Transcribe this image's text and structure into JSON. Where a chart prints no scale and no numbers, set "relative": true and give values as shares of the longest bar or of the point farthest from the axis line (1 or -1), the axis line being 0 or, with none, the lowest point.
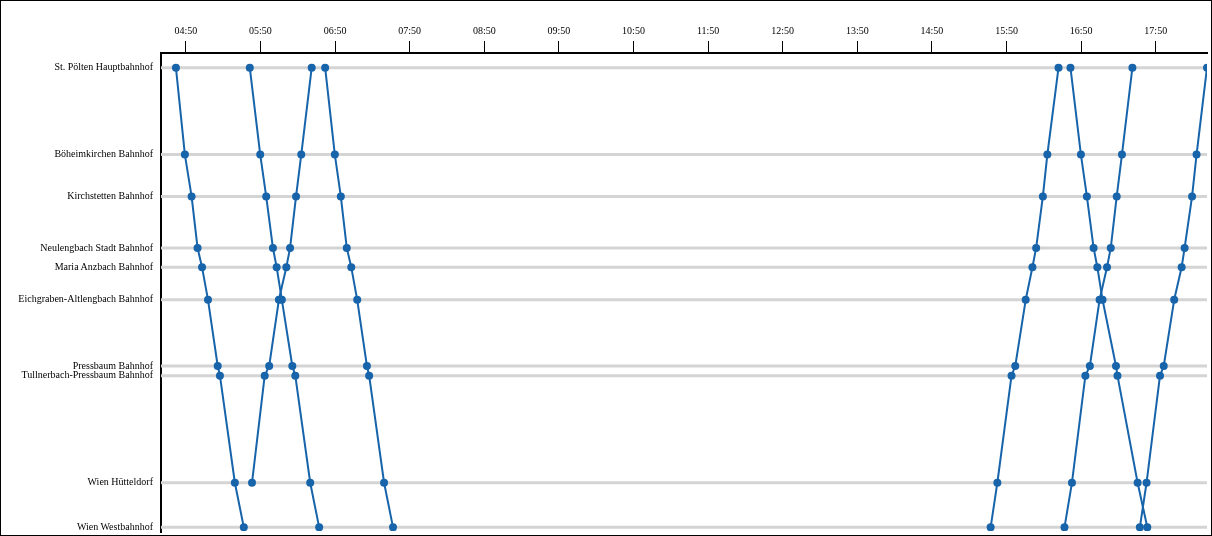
{
  "chart_data": {
    "type": "line",
    "relative": true,
    "marker": "circle",
    "line_style": "solid",
    "legend": false,
    "xlim": [
      4.5,
      18.52
    ],
    "xticks": [
      {
        "value": 4.833,
        "label": "04:50"
      },
      {
        "value": 5.833,
        "label": "05:50"
      },
      {
        "value": 6.833,
        "label": "06:50"
      },
      {
        "value": 7.833,
        "label": "07:50"
      },
      {
        "value": 8.833,
        "label": "08:50"
      },
      {
        "value": 9.833,
        "label": "09:50"
      },
      {
        "value": 10.833,
        "label": "10:50"
      },
      {
        "value": 11.833,
        "label": "11:50"
      },
      {
        "value": 12.833,
        "label": "12:50"
      },
      {
        "value": 13.833,
        "label": "13:50"
      },
      {
        "value": 14.833,
        "label": "14:50"
      },
      {
        "value": 15.833,
        "label": "15:50"
      },
      {
        "value": 16.833,
        "label": "16:50"
      },
      {
        "value": 17.833,
        "label": "17:50"
      }
    ],
    "ref_lines": [
      {
        "axis": "y",
        "value": 1,
        "label": "St. Pölten Hauptbahnhof",
        "color": "#d4d4d4"
      },
      {
        "axis": "y",
        "value": 0.811,
        "label": "Böheimkirchen Bahnhof",
        "color": "#d4d4d4"
      },
      {
        "axis": "y",
        "value": 0.72,
        "label": "Kirchstetten Bahnhof",
        "color": "#d4d4d4"
      },
      {
        "axis": "y",
        "value": 0.608,
        "label": "Neulengbach Stadt Bahnhof",
        "color": "#d4d4d4"
      },
      {
        "axis": "y",
        "value": 0.566,
        "label": "Maria Anzbach Bahnhof",
        "color": "#d4d4d4"
      },
      {
        "axis": "y",
        "value": 0.495,
        "label": "Eichgraben-Altlengbach Bahnhof",
        "color": "#d4d4d4"
      },
      {
        "axis": "y",
        "value": 0.351,
        "label": "Pressbaum Bahnhof",
        "color": "#d4d4d4"
      },
      {
        "axis": "y",
        "value": 0.33,
        "label": "Tullnerbach-Pressbaum Bahnhof",
        "color": "#d4d4d4"
      },
      {
        "axis": "y",
        "value": 0.097,
        "label": "Wien Hütteldorf",
        "color": "#d4d4d4"
      },
      {
        "axis": "y",
        "value": 0,
        "label": "Wien Westbahnhof",
        "color": "#d4d4d4"
      }
    ],
    "series": [
      {
        "color": "#1764ab",
        "x": [
          4.7,
          4.82,
          4.91,
          4.99,
          5.05,
          5.13,
          5.26,
          5.29,
          5.49,
          5.61
        ],
        "values": [
          1,
          0.811,
          0.72,
          0.608,
          0.566,
          0.495,
          0.351,
          0.33,
          0.097,
          0
        ]
      },
      {
        "color": "#1764ab",
        "x": [
          5.69,
          5.83,
          5.91,
          6.0,
          6.05,
          6.12,
          6.26,
          6.3,
          6.5,
          6.62
        ],
        "values": [
          1,
          0.811,
          0.72,
          0.608,
          0.566,
          0.495,
          0.351,
          0.33,
          0.097,
          0
        ]
      },
      {
        "color": "#1764ab",
        "x": [
          5.72,
          5.89,
          5.95,
          6.08,
          6.18,
          6.23,
          6.31,
          6.38,
          6.52
        ],
        "values": [
          0.097,
          0.33,
          0.351,
          0.495,
          0.566,
          0.608,
          0.72,
          0.811,
          1
        ]
      },
      {
        "color": "#1764ab",
        "x": [
          6.7,
          6.83,
          6.91,
          6.99,
          7.05,
          7.13,
          7.26,
          7.29,
          7.49,
          7.61
        ],
        "values": [
          1,
          0.811,
          0.72,
          0.608,
          0.566,
          0.495,
          0.351,
          0.33,
          0.097,
          0
        ]
      },
      {
        "color": "#1764ab",
        "x": [
          15.62,
          15.71,
          15.9,
          15.95,
          16.09,
          16.18,
          16.23,
          16.32,
          16.38,
          16.53
        ],
        "values": [
          0,
          0.097,
          0.33,
          0.351,
          0.495,
          0.566,
          0.608,
          0.72,
          0.811,
          1
        ]
      },
      {
        "color": "#1764ab",
        "x": [
          16.69,
          16.83,
          16.91,
          17.0,
          17.05,
          17.12,
          17.3,
          17.32,
          17.59,
          17.72
        ],
        "values": [
          1,
          0.811,
          0.72,
          0.608,
          0.566,
          0.495,
          0.351,
          0.33,
          0.097,
          0
        ]
      },
      {
        "color": "#1764ab",
        "x": [
          16.61,
          16.71,
          16.89,
          16.95,
          17.08,
          17.18,
          17.23,
          17.31,
          17.38,
          17.52
        ],
        "values": [
          0,
          0.097,
          0.33,
          0.351,
          0.495,
          0.566,
          0.608,
          0.72,
          0.811,
          1
        ]
      },
      {
        "color": "#1764ab",
        "x": [
          17.62,
          17.71,
          17.89,
          17.94,
          18.08,
          18.18,
          18.22,
          18.32,
          18.38,
          18.52
        ],
        "values": [
          0,
          0.097,
          0.33,
          0.351,
          0.495,
          0.566,
          0.608,
          0.72,
          0.811,
          1
        ]
      }
    ]
  }
}
